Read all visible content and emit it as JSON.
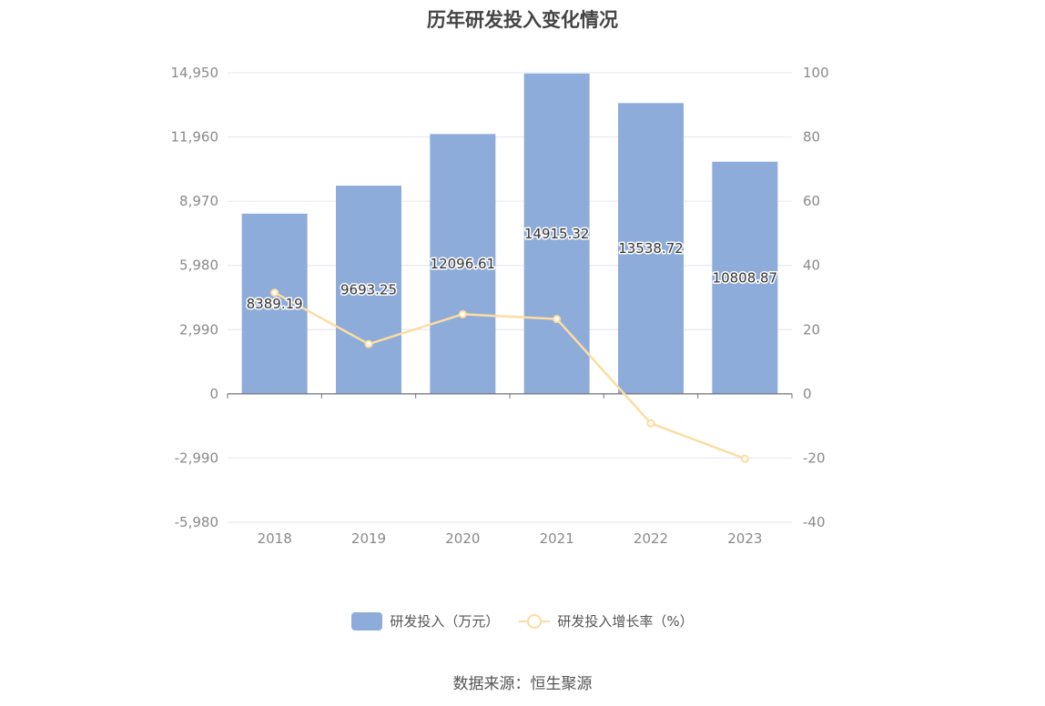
{
  "chart_data": {
    "type": "bar",
    "title": "历年研发投入变化情况",
    "categories": [
      "2018",
      "2019",
      "2020",
      "2021",
      "2022",
      "2023"
    ],
    "series": [
      {
        "name": "研发投入（万元）",
        "type": "bar",
        "axis": "left",
        "values": [
          8389.19,
          9693.25,
          12096.61,
          14915.32,
          13538.72,
          10808.87
        ],
        "labels": [
          "8389.19",
          "9693.25",
          "12096.61",
          "14915.32",
          "13538.72",
          "10808.87"
        ],
        "color": "#8eacd9"
      },
      {
        "name": "研发投入增长率（%）",
        "type": "line",
        "axis": "right",
        "values": [
          31.5,
          15.5,
          24.8,
          23.3,
          -9.2,
          -20.2
        ],
        "color": "#fddca0"
      }
    ],
    "y_left": {
      "ylim": [
        -5980,
        14950
      ],
      "ticks": [
        -5980,
        -2990,
        0,
        2990,
        5980,
        8970,
        11960,
        14950
      ],
      "tick_labels": [
        "-5,980",
        "-2,990",
        "0",
        "2,990",
        "5,980",
        "8,970",
        "11,960",
        "14,950"
      ]
    },
    "y_right": {
      "ylim": [
        -40,
        100
      ],
      "ticks": [
        -40,
        -20,
        0,
        20,
        40,
        60,
        80,
        100
      ],
      "tick_labels": [
        "-40",
        "-20",
        "0",
        "20",
        "40",
        "60",
        "80",
        "100"
      ]
    },
    "grid": true,
    "legend_position": "bottom"
  },
  "legend": {
    "bar_label": "研发投入（万元）",
    "line_label": "研发投入增长率（%）"
  },
  "source": "数据来源：恒生聚源"
}
